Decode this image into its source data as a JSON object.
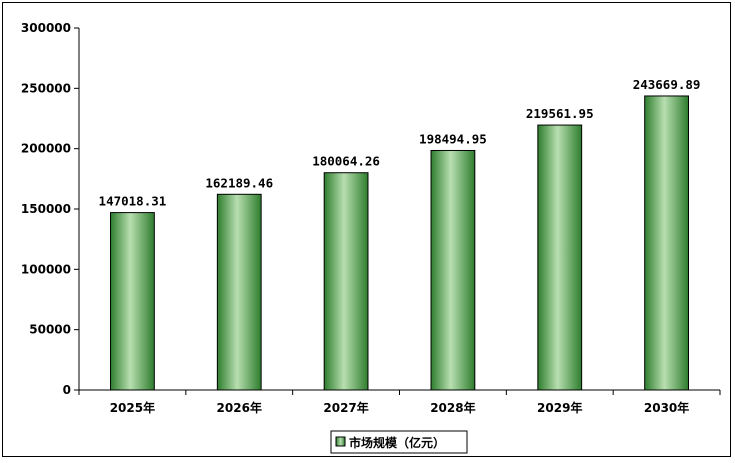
{
  "chart_data": {
    "type": "bar",
    "categories": [
      "2025年",
      "2026年",
      "2027年",
      "2028年",
      "2029年",
      "2030年"
    ],
    "series": [
      {
        "name": "市场规模（亿元）",
        "values": [
          147018.31,
          162189.46,
          180064.26,
          198494.95,
          219561.95,
          243669.89
        ],
        "value_labels": [
          "147018.31",
          "162189.46",
          "180064.26",
          "198494.95",
          "219561.95",
          "243669.89"
        ]
      }
    ],
    "title": "",
    "xlabel": "",
    "ylabel": "",
    "ylim": [
      0,
      300000
    ],
    "yticks": [
      0,
      50000,
      100000,
      150000,
      200000,
      250000,
      300000
    ],
    "ytick_labels": [
      "0",
      "50000",
      "100000",
      "150000",
      "200000",
      "250000",
      "300000"
    ],
    "grid": false,
    "legend": "bottom-center",
    "colors": {
      "bar_dark": "#2e7d2e",
      "bar_light": "#b8dfb0",
      "bar_outline": "#000000"
    }
  }
}
